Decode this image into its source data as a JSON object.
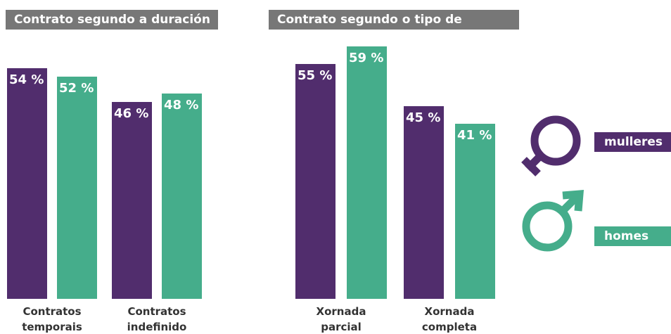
{
  "chart_data": [
    {
      "type": "bar",
      "title": "Contrato segundo a duración",
      "categories": [
        "Contratos temporais",
        "Contratos indefinido"
      ],
      "series": [
        {
          "color": "#512d6d",
          "values": [
            54,
            46
          ],
          "value_labels": [
            "54 %",
            "46 %"
          ]
        },
        {
          "color": "#45ad8b",
          "values": [
            52,
            48
          ],
          "value_labels": [
            "52 %",
            "48 %"
          ]
        }
      ]
    },
    {
      "type": "bar",
      "title": "Contrato segundo o tipo de xornada",
      "categories": [
        "Xornada parcial",
        "Xornada completa"
      ],
      "series": [
        {
          "color": "#512d6d",
          "values": [
            55,
            45
          ],
          "value_labels": [
            "55 %",
            "45 %"
          ]
        },
        {
          "color": "#45ad8b",
          "values": [
            59,
            41
          ],
          "value_labels": [
            "59 %",
            "41 %"
          ]
        }
      ]
    }
  ],
  "legend": {
    "items": [
      {
        "name": "mulleres",
        "color": "#512d6d"
      },
      {
        "name": "homes",
        "color": "#45ad8b"
      }
    ]
  }
}
